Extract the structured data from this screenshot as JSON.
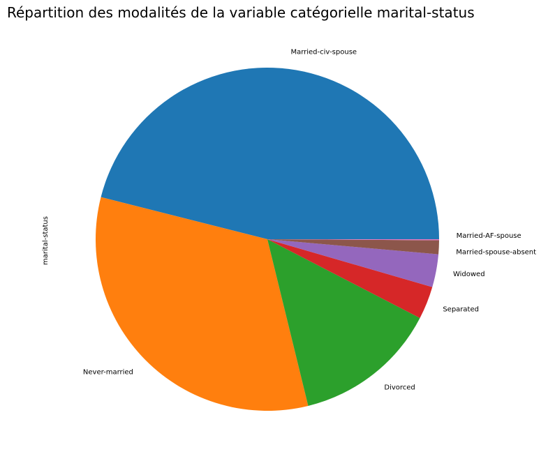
{
  "chart_data": {
    "type": "pie",
    "title": "Répartition des modalités de la variable catégorielle marital-status",
    "ylabel": "marital-status",
    "start_angle_deg": 0,
    "direction": "counterclockwise",
    "categories": [
      " Married-civ-spouse",
      " Never-married",
      " Divorced",
      " Separated",
      " Widowed",
      " Married-spouse-absent",
      " Married-AF-spouse"
    ],
    "values": [
      46.1,
      32.8,
      13.6,
      3.1,
      3.1,
      1.3,
      0.1
    ],
    "colors": [
      "#1f77b4",
      "#ff7f0e",
      "#2ca02c",
      "#d62728",
      "#9467bd",
      "#8c564b",
      "#e377c2"
    ]
  }
}
